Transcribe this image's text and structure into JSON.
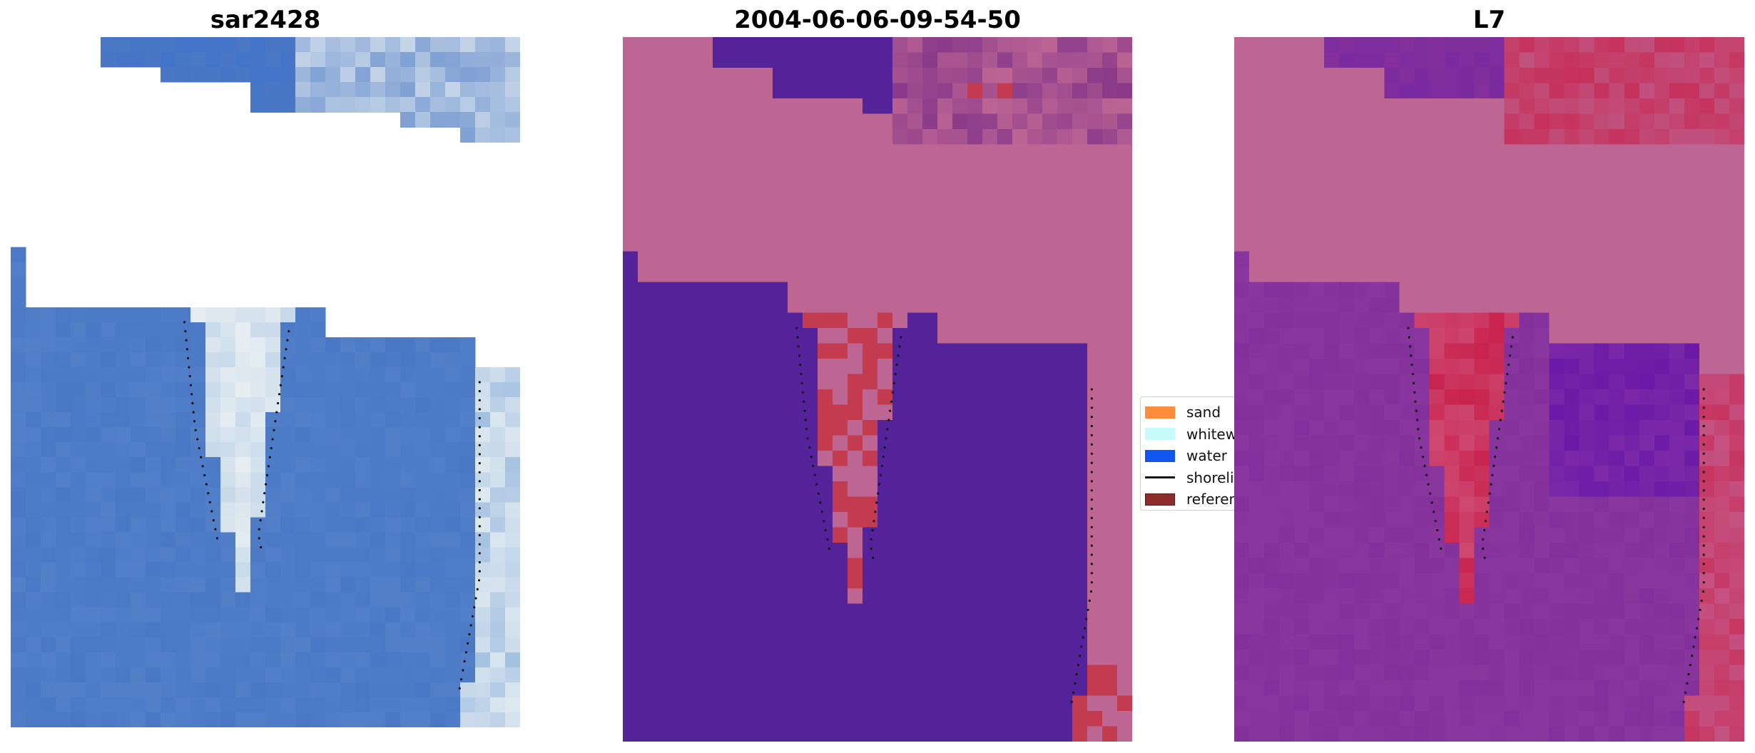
{
  "panels": [
    {
      "title": "sar2428"
    },
    {
      "title": "2004-06-06-09-54-50"
    },
    {
      "title": "L7"
    }
  ],
  "legend": {
    "items": [
      {
        "label": "sand",
        "color": "#ff8c3a",
        "kind": "patch"
      },
      {
        "label": "whitewater",
        "color": "#c8fcfc",
        "kind": "patch"
      },
      {
        "label": "water",
        "color": "#1055ee",
        "kind": "patch"
      },
      {
        "label": "shoreline",
        "color": "#111111",
        "kind": "line"
      },
      {
        "label": "reference shoreline",
        "color": "#8e2b2b",
        "kind": "patch"
      }
    ]
  },
  "colors": {
    "rgb_water": "#4a78c4",
    "rgb_white": "#e6eef2",
    "class_water": "#54239a",
    "class_nodata": "#bd6694",
    "class_sand": "#c23b4f",
    "index_high": "#c8244d",
    "index_low": "#84309c"
  }
}
